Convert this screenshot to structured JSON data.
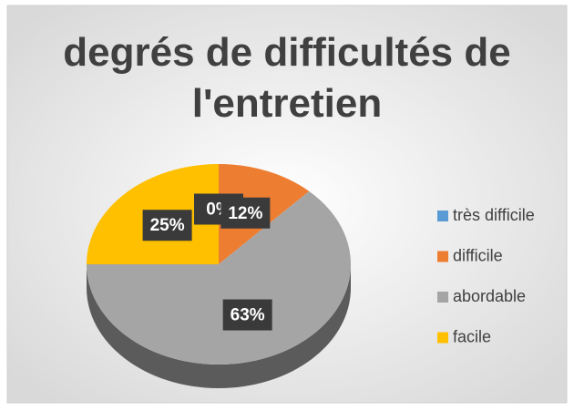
{
  "chart_data": {
    "type": "pie3d",
    "title": "degrés de difficultés de l'entretien",
    "categories": [
      "très difficile",
      "difficile",
      "abordable",
      "facile"
    ],
    "values": [
      0,
      12,
      63,
      25
    ],
    "value_labels": [
      "0%",
      "12%",
      "63%",
      "25%"
    ],
    "colors": [
      "#5b9bd5",
      "#ed7d31",
      "#a5a5a5",
      "#ffc000"
    ],
    "legend": "right"
  }
}
